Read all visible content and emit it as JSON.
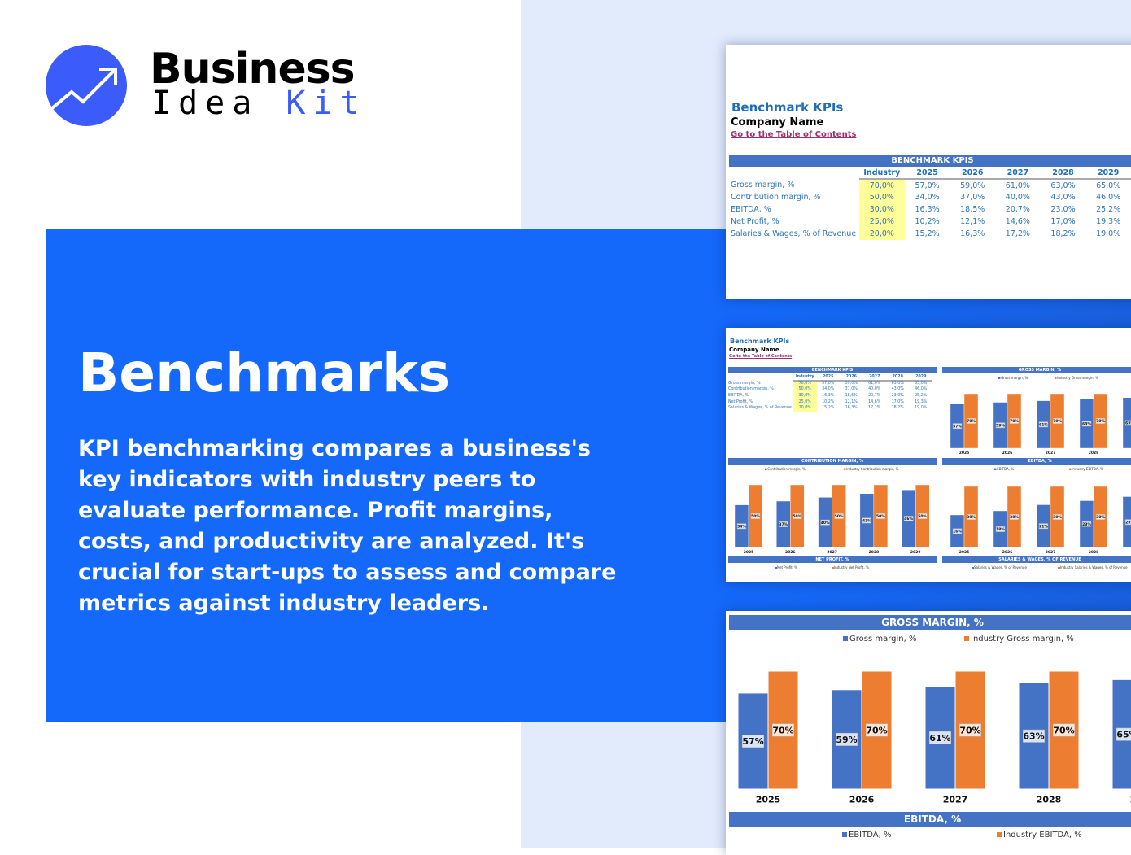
{
  "brand": {
    "line1": "Business",
    "line2a": "Idea",
    "line2b": "Kit",
    "accent": "#3b5bfb"
  },
  "hero": {
    "title": "Benchmarks",
    "description": "KPI benchmarking compares a business's key indicators with industry peers to evaluate performance. Profit margins, costs, and productivity are analyzed. It's crucial for start-ups to assess and compare metrics against industry leaders.",
    "panel_color": "#1469fb"
  },
  "sheet": {
    "title": "Benchmark KPIs",
    "company": "Company Name",
    "toc_link": "Go to the Table of Contents",
    "table_title": "BENCHMARK KPIS",
    "columns": [
      "Industry",
      "2025",
      "2026",
      "2027",
      "2028",
      "2029"
    ],
    "rows": [
      {
        "label": "Gross margin, %",
        "values": [
          "70,0%",
          "57,0%",
          "59,0%",
          "61,0%",
          "63,0%",
          "65,0%"
        ]
      },
      {
        "label": "Contribution margin, %",
        "values": [
          "50,0%",
          "34,0%",
          "37,0%",
          "40,0%",
          "43,0%",
          "46,0%"
        ]
      },
      {
        "label": "EBITDA, %",
        "values": [
          "30,0%",
          "16,3%",
          "18,5%",
          "20,7%",
          "23,0%",
          "25,2%"
        ]
      },
      {
        "label": "Net Profit, %",
        "values": [
          "25,0%",
          "10,2%",
          "12,1%",
          "14,6%",
          "17,0%",
          "19,3%"
        ]
      },
      {
        "label": "Salaries & Wages, % of Revenue",
        "values": [
          "20,0%",
          "15,2%",
          "16,3%",
          "17,2%",
          "18,2%",
          "19,0%"
        ]
      }
    ],
    "sections": {
      "net_profit": {
        "title": "NET PROFIT, %",
        "legend": [
          "Net Profit, %",
          "Industry Net Profit, %"
        ]
      },
      "salaries": {
        "title": "SALARIES & WAGES, % OF REVENUE",
        "legend": [
          "Salaries & Wages, % of Revenue",
          "Industry Salaries & Wages, % of Revenue"
        ]
      }
    },
    "colors": {
      "header": "#4472c4",
      "company": "#4472c4",
      "industry": "#ed7d31",
      "industry_cell": "#ffff99"
    }
  },
  "chart_data": [
    {
      "type": "bar",
      "title": "GROSS MARGIN, %",
      "categories": [
        "2025",
        "2026",
        "2027",
        "2028",
        "2029"
      ],
      "series": [
        {
          "name": "Gross margin, %",
          "values": [
            57,
            59,
            61,
            63,
            65
          ],
          "color": "#4472c4"
        },
        {
          "name": "Industry Gross margin, %",
          "values": [
            70,
            70,
            70,
            70,
            70
          ],
          "color": "#ed7d31"
        }
      ]
    },
    {
      "type": "bar",
      "title": "CONTRIBUTION MARGIN, %",
      "categories": [
        "2025",
        "2026",
        "2027",
        "2028",
        "2029"
      ],
      "series": [
        {
          "name": "Contribution margin, %",
          "values": [
            34,
            37,
            40,
            43,
            46
          ],
          "color": "#4472c4"
        },
        {
          "name": "Industry Contribution margin, %",
          "values": [
            50,
            50,
            50,
            50,
            50
          ],
          "color": "#ed7d31"
        }
      ]
    },
    {
      "type": "bar",
      "title": "EBITDA, %",
      "categories": [
        "2025",
        "2026",
        "2027",
        "2028",
        "2029"
      ],
      "series": [
        {
          "name": "EBITDA, %",
          "values": [
            16,
            18,
            21,
            23,
            25
          ],
          "color": "#4472c4"
        },
        {
          "name": "Industry EBITDA, %",
          "values": [
            30,
            30,
            30,
            30,
            30
          ],
          "color": "#ed7d31"
        }
      ]
    }
  ]
}
